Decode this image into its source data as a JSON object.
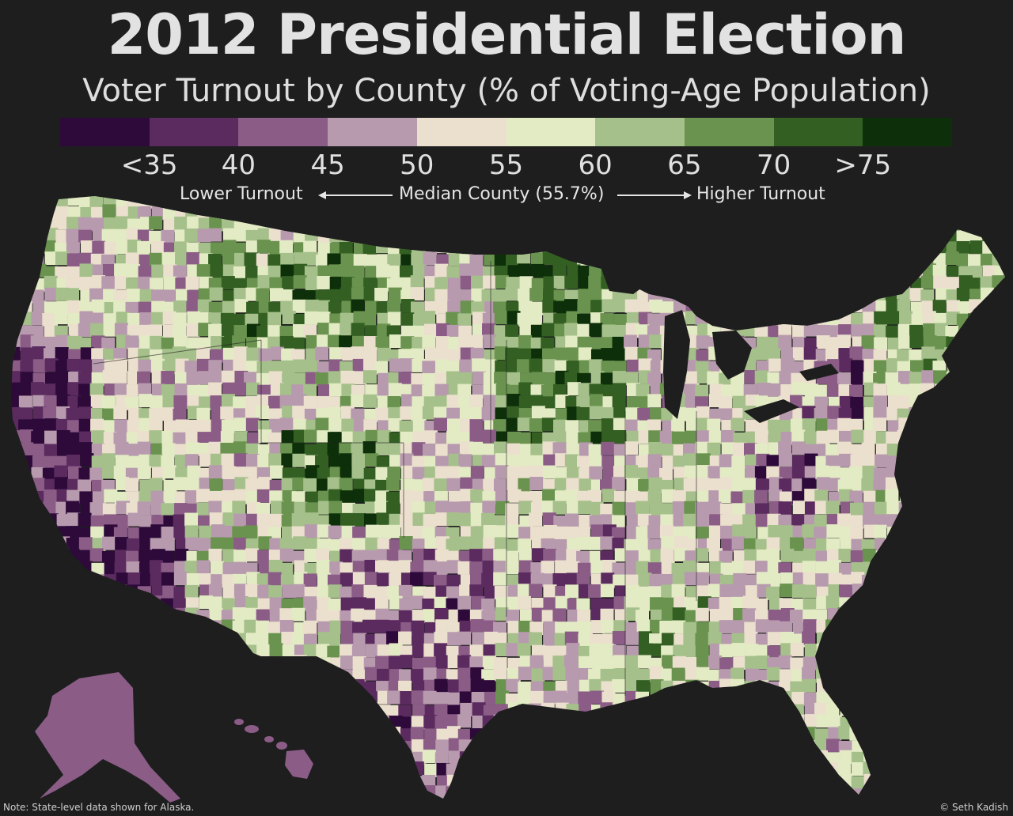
{
  "title": "2012 Presidential Election",
  "subtitle": "Voter Turnout by County (% of Voting-Age Population)",
  "legend": {
    "colors": [
      "#2d0a3a",
      "#5b2b5f",
      "#8a5c86",
      "#b79aae",
      "#ebdfcd",
      "#e3ebc4",
      "#a5c08a",
      "#6a934f",
      "#345f23",
      "#0d2f09"
    ],
    "tick_labels": [
      "<35",
      "40",
      "45",
      "50",
      "55",
      "60",
      "65",
      "70",
      ">75"
    ],
    "lower_label": "Lower Turnout",
    "median_label": "Median County (55.7%)",
    "higher_label": "Higher Turnout"
  },
  "note": "Note: State-level data shown for Alaska.",
  "credit": "© Seth Kadish",
  "map": {
    "alaska_color": "#8a5c86",
    "hawaii_color": "#8a5c86"
  }
}
